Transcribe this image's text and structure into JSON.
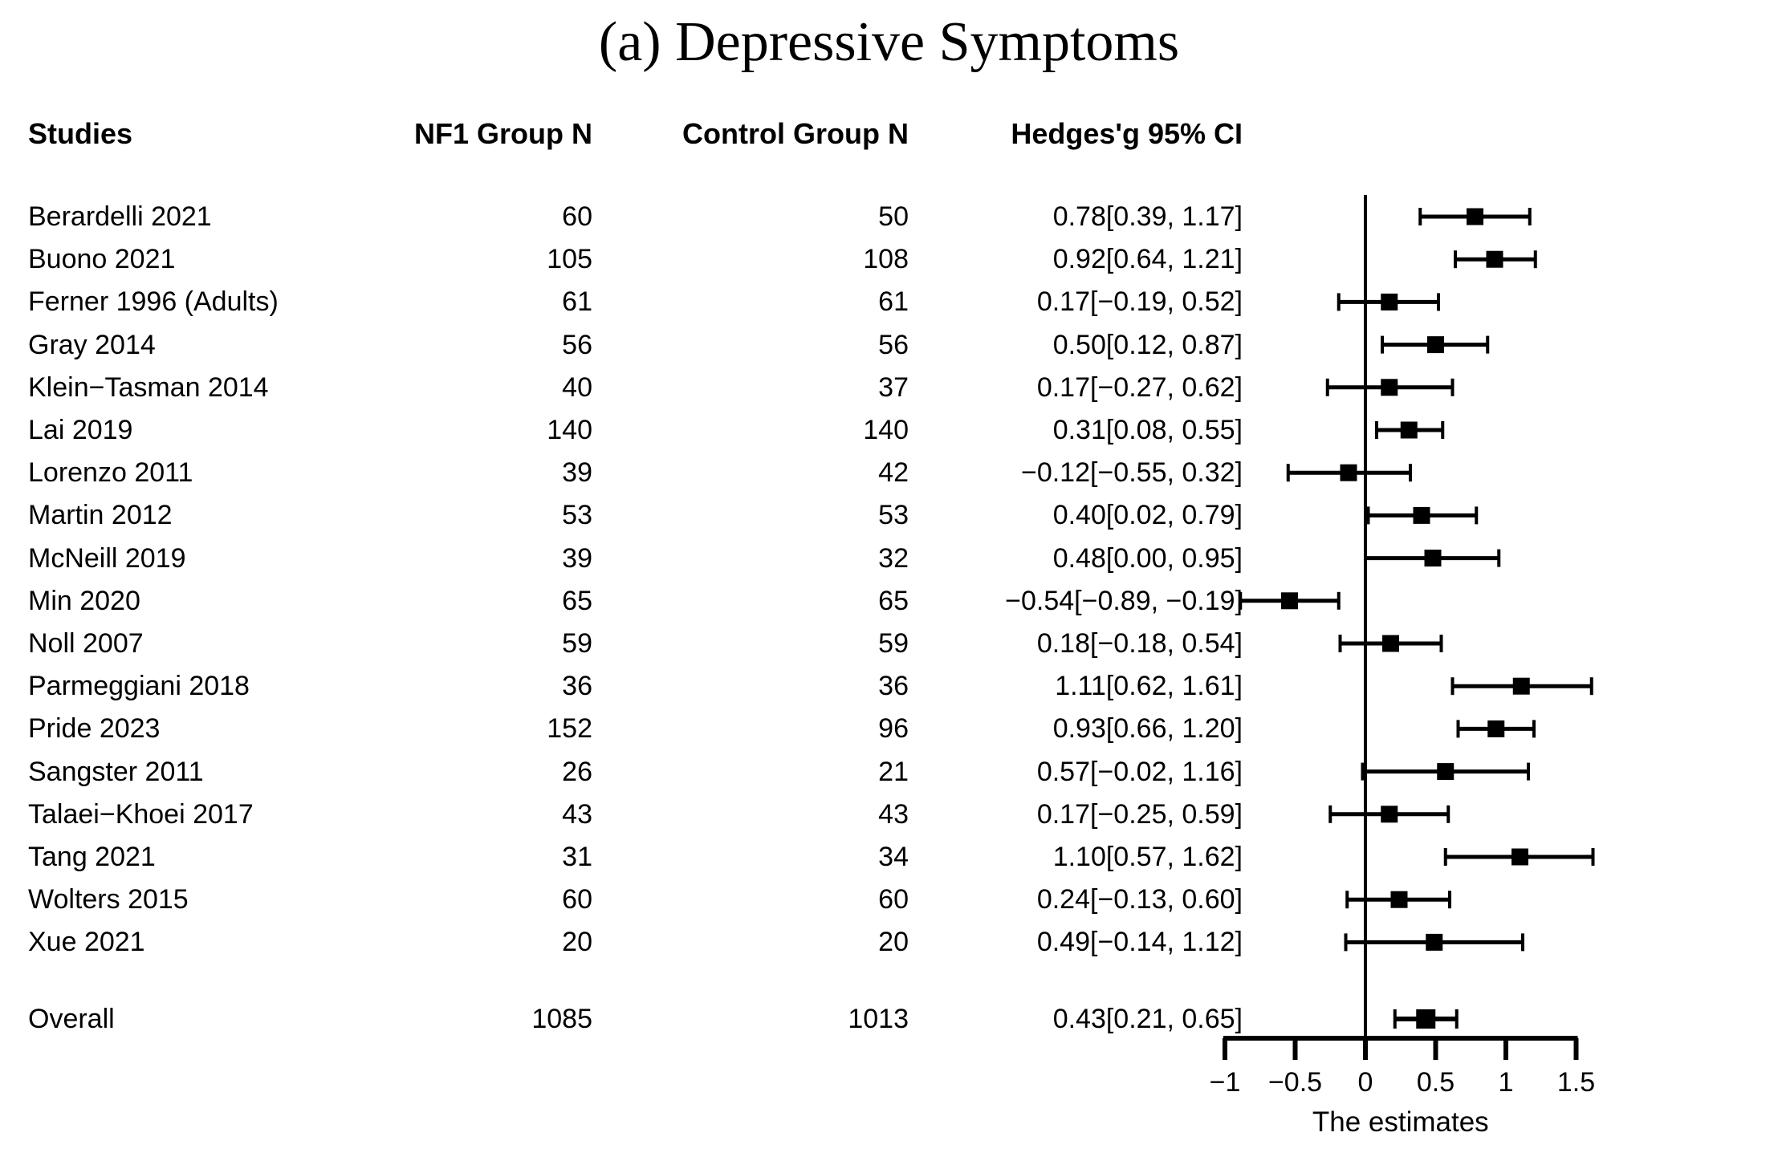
{
  "figure": {
    "title": "(a) Depressive Symptoms"
  },
  "table_header": {
    "studies": "Studies",
    "nf1_group_n": "NF1 Group N",
    "control_group_n": "Control Group N",
    "hedges_g_ci": "Hedges'g 95% CI"
  },
  "colors": {
    "ink": "#000000",
    "background": "#ffffff"
  },
  "chart_data": {
    "type": "forest",
    "title": "(a) Depressive Symptoms",
    "columns": [
      "Studies",
      "NF1 Group N",
      "Control Group N",
      "Hedges'g 95% CI"
    ],
    "xaxis": {
      "label": "The estimates",
      "min": -1,
      "max": 1.5,
      "ticks": [
        -1,
        -0.5,
        0,
        0.5,
        1,
        1.5
      ],
      "tick_labels": [
        "−1",
        "−0.5",
        "0",
        "0.5",
        "1",
        "1.5"
      ],
      "zero_reference_line": 0
    },
    "marker": "black-square-with-ci-whiskers",
    "studies": [
      {
        "study": "Berardelli 2021",
        "nf1_n": 60,
        "control_n": 50,
        "estimate": 0.78,
        "ci_low": 0.39,
        "ci_high": 1.17,
        "ci_text": "0.78[0.39, 1.17]"
      },
      {
        "study": "Buono 2021",
        "nf1_n": 105,
        "control_n": 108,
        "estimate": 0.92,
        "ci_low": 0.64,
        "ci_high": 1.21,
        "ci_text": "0.92[0.64, 1.21]"
      },
      {
        "study": "Ferner 1996 (Adults)",
        "nf1_n": 61,
        "control_n": 61,
        "estimate": 0.17,
        "ci_low": -0.19,
        "ci_high": 0.52,
        "ci_text": "0.17[−0.19, 0.52]"
      },
      {
        "study": "Gray 2014",
        "nf1_n": 56,
        "control_n": 56,
        "estimate": 0.5,
        "ci_low": 0.12,
        "ci_high": 0.87,
        "ci_text": "0.50[0.12, 0.87]"
      },
      {
        "study": "Klein−Tasman 2014",
        "nf1_n": 40,
        "control_n": 37,
        "estimate": 0.17,
        "ci_low": -0.27,
        "ci_high": 0.62,
        "ci_text": "0.17[−0.27, 0.62]"
      },
      {
        "study": "Lai 2019",
        "nf1_n": 140,
        "control_n": 140,
        "estimate": 0.31,
        "ci_low": 0.08,
        "ci_high": 0.55,
        "ci_text": "0.31[0.08, 0.55]"
      },
      {
        "study": "Lorenzo 2011",
        "nf1_n": 39,
        "control_n": 42,
        "estimate": -0.12,
        "ci_low": -0.55,
        "ci_high": 0.32,
        "ci_text": "−0.12[−0.55, 0.32]"
      },
      {
        "study": "Martin 2012",
        "nf1_n": 53,
        "control_n": 53,
        "estimate": 0.4,
        "ci_low": 0.02,
        "ci_high": 0.79,
        "ci_text": "0.40[0.02, 0.79]"
      },
      {
        "study": "McNeill 2019",
        "nf1_n": 39,
        "control_n": 32,
        "estimate": 0.48,
        "ci_low": 0.0,
        "ci_high": 0.95,
        "ci_text": "0.48[0.00, 0.95]"
      },
      {
        "study": "Min 2020",
        "nf1_n": 65,
        "control_n": 65,
        "estimate": -0.54,
        "ci_low": -0.89,
        "ci_high": -0.19,
        "ci_text": "−0.54[−0.89, −0.19]"
      },
      {
        "study": "Noll 2007",
        "nf1_n": 59,
        "control_n": 59,
        "estimate": 0.18,
        "ci_low": -0.18,
        "ci_high": 0.54,
        "ci_text": "0.18[−0.18, 0.54]"
      },
      {
        "study": "Parmeggiani 2018",
        "nf1_n": 36,
        "control_n": 36,
        "estimate": 1.11,
        "ci_low": 0.62,
        "ci_high": 1.61,
        "ci_text": "1.11[0.62, 1.61]"
      },
      {
        "study": "Pride 2023",
        "nf1_n": 152,
        "control_n": 96,
        "estimate": 0.93,
        "ci_low": 0.66,
        "ci_high": 1.2,
        "ci_text": "0.93[0.66, 1.20]"
      },
      {
        "study": "Sangster 2011",
        "nf1_n": 26,
        "control_n": 21,
        "estimate": 0.57,
        "ci_low": -0.02,
        "ci_high": 1.16,
        "ci_text": "0.57[−0.02, 1.16]"
      },
      {
        "study": "Talaei−Khoei 2017",
        "nf1_n": 43,
        "control_n": 43,
        "estimate": 0.17,
        "ci_low": -0.25,
        "ci_high": 0.59,
        "ci_text": "0.17[−0.25, 0.59]"
      },
      {
        "study": "Tang 2021",
        "nf1_n": 31,
        "control_n": 34,
        "estimate": 1.1,
        "ci_low": 0.57,
        "ci_high": 1.62,
        "ci_text": "1.10[0.57, 1.62]"
      },
      {
        "study": "Wolters 2015",
        "nf1_n": 60,
        "control_n": 60,
        "estimate": 0.24,
        "ci_low": -0.13,
        "ci_high": 0.6,
        "ci_text": "0.24[−0.13, 0.60]"
      },
      {
        "study": "Xue 2021",
        "nf1_n": 20,
        "control_n": 20,
        "estimate": 0.49,
        "ci_low": -0.14,
        "ci_high": 1.12,
        "ci_text": "0.49[−0.14, 1.12]"
      }
    ],
    "overall": {
      "study": "Overall",
      "nf1_n": 1085,
      "control_n": 1013,
      "estimate": 0.43,
      "ci_low": 0.21,
      "ci_high": 0.65,
      "ci_text": "0.43[0.21, 0.65]"
    }
  }
}
